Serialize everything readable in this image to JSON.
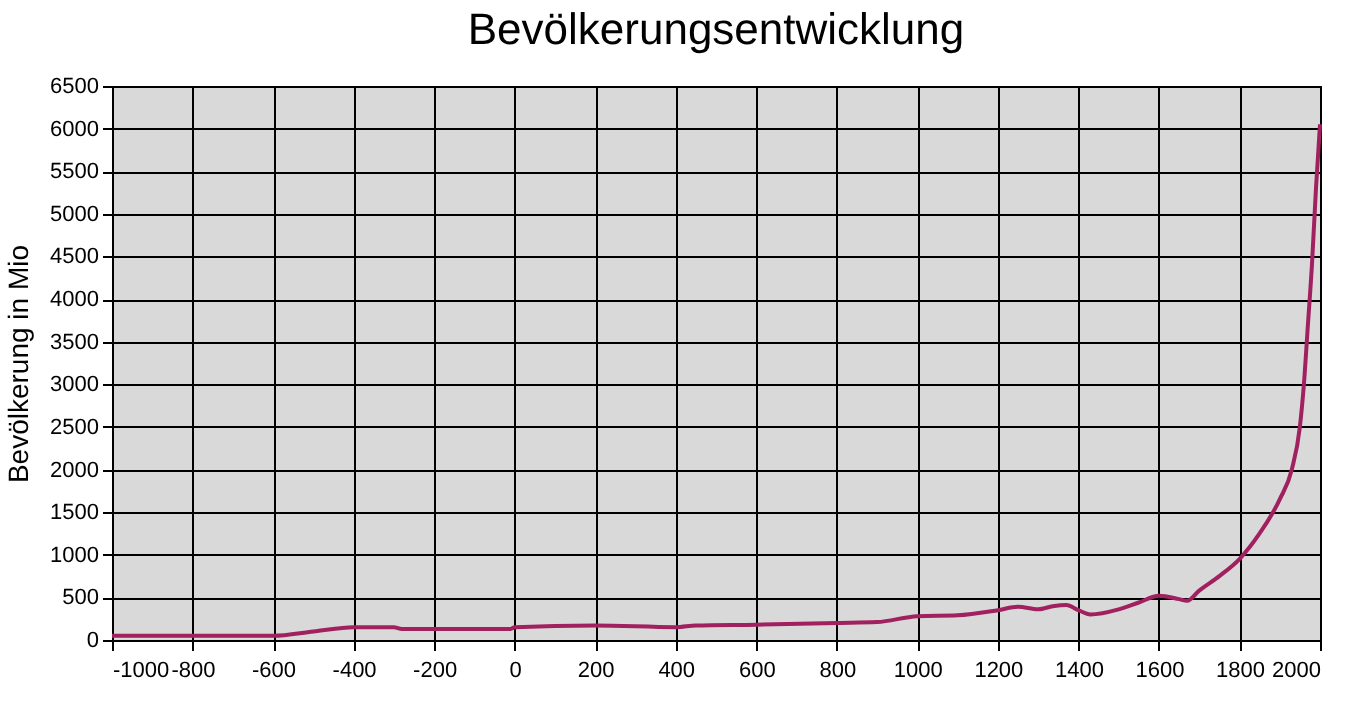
{
  "chart_data": {
    "type": "line",
    "title": "Bevölkerungsentwicklung",
    "ylabel": "Bevölkerung in Mio",
    "x": [
      -1000,
      -600,
      -500,
      -400,
      -300,
      -280,
      -10,
      0,
      200,
      400,
      450,
      600,
      800,
      900,
      1000,
      1100,
      1200,
      1250,
      1300,
      1340,
      1370,
      1400,
      1430,
      1500,
      1550,
      1600,
      1650,
      1670,
      1700,
      1750,
      1800,
      1850,
      1900,
      1930,
      1950,
      1960,
      1970,
      1980,
      1990,
      2000
    ],
    "series": [
      {
        "color": "#a02060",
        "values": [
          50,
          50,
          100,
          150,
          150,
          130,
          130,
          150,
          170,
          150,
          170,
          180,
          200,
          210,
          280,
          290,
          350,
          390,
          360,
          400,
          410,
          350,
          300,
          360,
          440,
          520,
          480,
          460,
          580,
          750,
          950,
          1250,
          1650,
          2000,
          2500,
          3000,
          3700,
          4400,
          5300,
          6050
        ]
      }
    ],
    "xlim": [
      -1000,
      2000
    ],
    "xticks": [
      -1000,
      -800,
      -600,
      -400,
      -200,
      0,
      200,
      400,
      600,
      800,
      1000,
      1200,
      1400,
      1600,
      1800,
      2000
    ],
    "ylim": [
      0,
      6500
    ],
    "yticks": [
      0,
      500,
      1000,
      1500,
      2000,
      2500,
      3000,
      3500,
      4000,
      4500,
      5000,
      5500,
      6000,
      6500
    ],
    "grid": true,
    "legend": false,
    "marker": "none",
    "line_style": "solid"
  }
}
